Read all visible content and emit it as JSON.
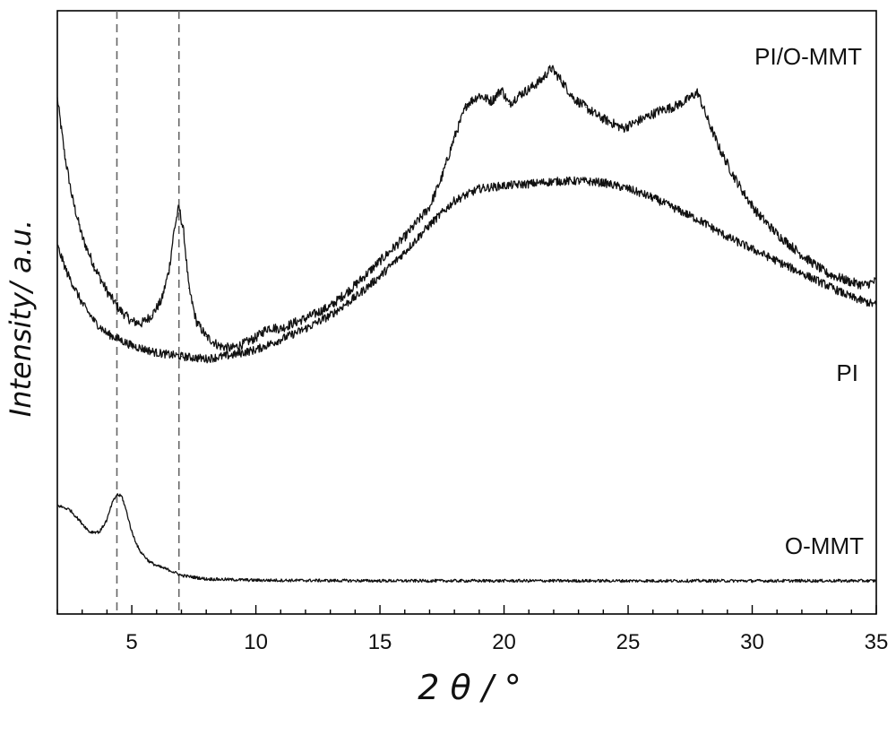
{
  "chart_data": {
    "type": "line",
    "title": "",
    "xlabel": "2 θ / °",
    "ylabel": "Intensity/ a.u.",
    "x_units": "degrees (2θ)",
    "xlim": [
      2,
      35
    ],
    "ylim": [
      0,
      100
    ],
    "y_ticks_shown": false,
    "xticks": [
      5,
      10,
      15,
      20,
      25,
      30,
      35
    ],
    "xtick_labels": [
      "5",
      "10",
      "15",
      "20",
      "25",
      "30",
      "35"
    ],
    "reference_lines": [
      {
        "x": 4.4,
        "style": "dashed"
      },
      {
        "x": 6.9,
        "style": "dashed"
      }
    ],
    "series": [
      {
        "name": "PI/O-MMT",
        "x": [
          2,
          2.3,
          2.6,
          3,
          3.5,
          4,
          4.5,
          5,
          5.4,
          5.8,
          6.2,
          6.5,
          6.7,
          6.9,
          7.1,
          7.3,
          7.6,
          8,
          8.5,
          9,
          9.5,
          10,
          10.5,
          11,
          11.5,
          12,
          13,
          14,
          15,
          16,
          17,
          17.5,
          18,
          18.5,
          19,
          19.5,
          19.9,
          20.2,
          20.6,
          21,
          21.5,
          21.9,
          22.3,
          22.8,
          23.3,
          23.8,
          24.3,
          24.8,
          25.3,
          25.8,
          26.3,
          26.8,
          27.3,
          27.8,
          28.2,
          28.7,
          29.2,
          29.7,
          30.2,
          31,
          32,
          33,
          34,
          34.5,
          35
        ],
        "y": [
          85.5,
          76,
          69,
          62.5,
          57.5,
          53.5,
          50.5,
          48.5,
          48.2,
          49.5,
          52,
          57,
          63.5,
          67.5,
          63,
          54,
          48.5,
          46,
          44.5,
          44,
          44.8,
          45.8,
          47.5,
          47.3,
          48.2,
          49,
          51,
          54.5,
          58.5,
          62.5,
          67.5,
          72.5,
          79,
          84.5,
          86,
          85,
          87,
          84.5,
          86,
          87,
          88.5,
          90.5,
          88.5,
          85.5,
          84,
          82.5,
          81.5,
          80.5,
          81.5,
          82.5,
          83.5,
          84,
          85,
          86.5,
          82,
          77,
          73,
          69.5,
          66.5,
          63,
          59.5,
          56.5,
          55,
          54.5,
          55.2
        ]
      },
      {
        "name": "PI",
        "x": [
          2,
          2.4,
          3,
          3.5,
          4,
          5,
          6,
          7,
          8,
          9,
          10,
          11,
          12,
          13,
          14,
          15,
          16,
          17,
          18,
          19,
          20,
          21,
          22,
          23,
          24,
          25,
          26,
          27,
          28,
          29,
          30,
          31,
          32,
          33,
          34,
          35
        ],
        "y": [
          61,
          56.5,
          51.5,
          48.5,
          46.5,
          44.5,
          43.3,
          42.7,
          42.3,
          42.9,
          43.8,
          45.5,
          47.3,
          49.5,
          52.5,
          56,
          60,
          64.5,
          68.5,
          70.5,
          71,
          71.3,
          71.7,
          71.8,
          71.5,
          70.5,
          69,
          67,
          65,
          62.5,
          60.5,
          58.5,
          56.5,
          54.5,
          52.5,
          51.2
        ]
      },
      {
        "name": "O-MMT",
        "x": [
          2,
          2.5,
          3,
          3.3,
          3.7,
          4,
          4.2,
          4.4,
          4.6,
          4.8,
          5,
          5.3,
          5.7,
          6,
          6.5,
          7,
          7.5,
          8,
          9,
          10,
          15,
          20,
          25,
          30,
          35
        ],
        "y": [
          18,
          17.3,
          15,
          13.6,
          13.6,
          15.6,
          18.3,
          19.8,
          19.5,
          16.8,
          13.6,
          10.6,
          8.7,
          8,
          7.3,
          6.4,
          6.1,
          5.8,
          5.7,
          5.6,
          5.5,
          5.5,
          5.5,
          5.5,
          5.5
        ]
      }
    ]
  }
}
